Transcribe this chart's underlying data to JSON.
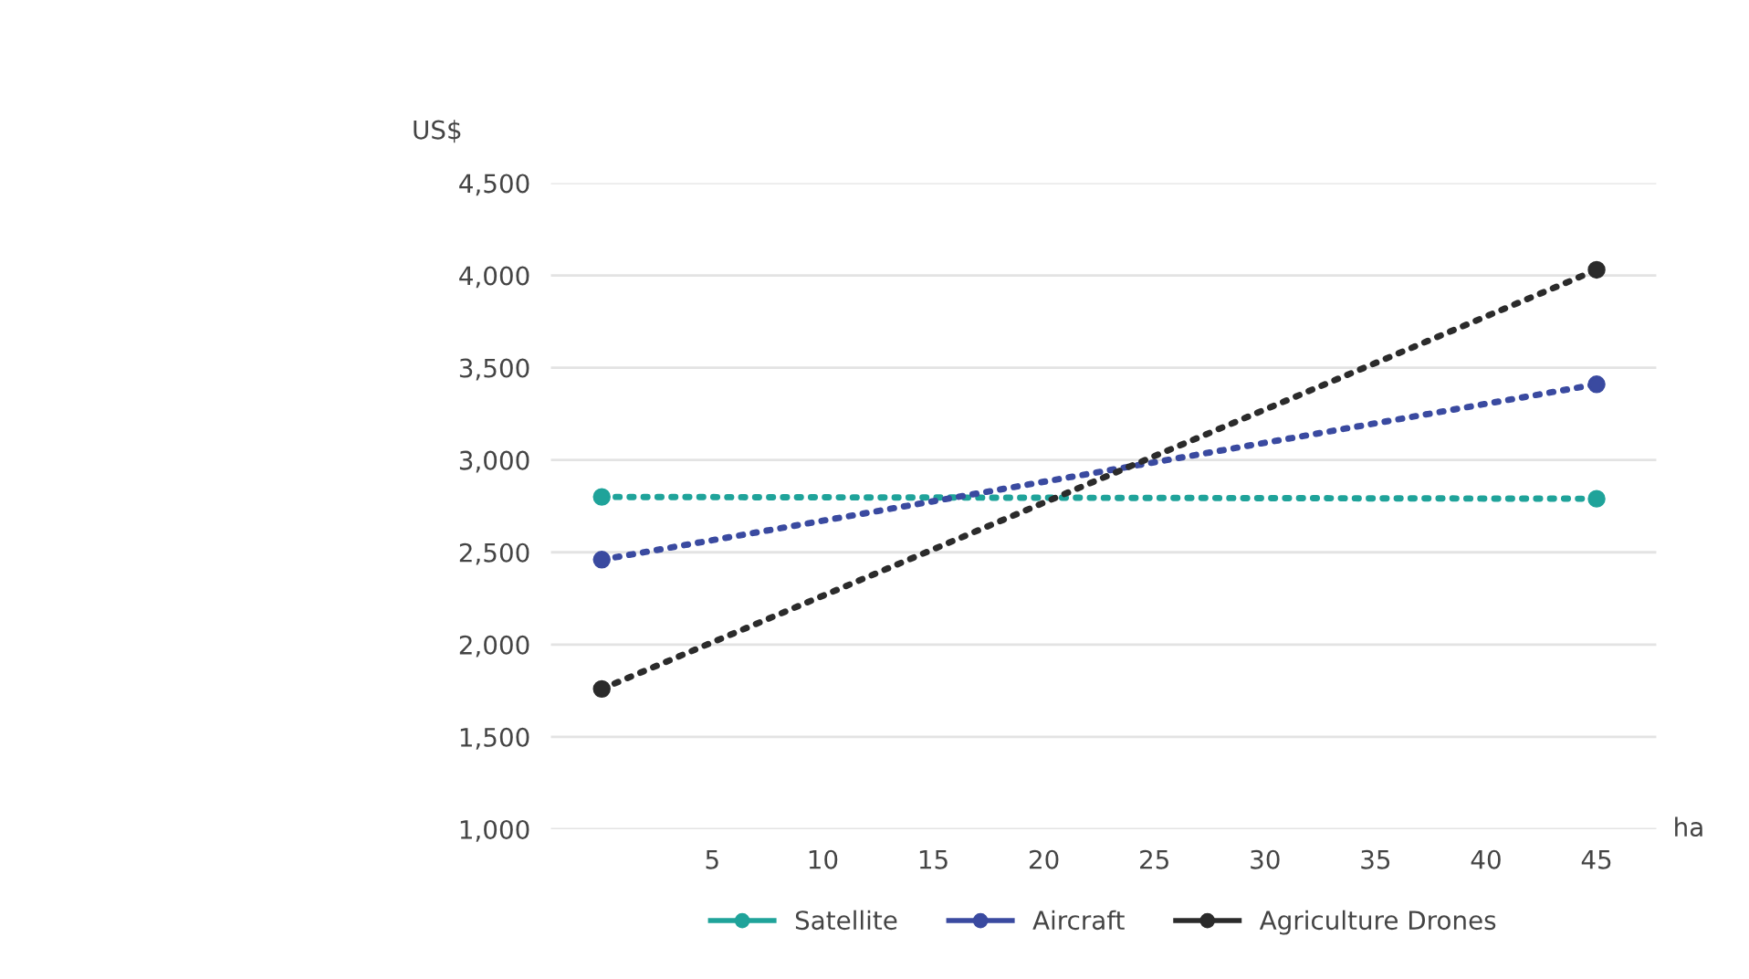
{
  "chart_data": {
    "type": "line",
    "xlabel": "ha",
    "ylabel": "US$",
    "x": [
      0,
      45
    ],
    "series": [
      {
        "name": "Satellite",
        "color": "#1fa39a",
        "values": [
          2800,
          2790
        ]
      },
      {
        "name": "Aircraft",
        "color": "#3a4aa0",
        "values": [
          2460,
          3410
        ]
      },
      {
        "name": "Agriculture Drones",
        "color": "#2b2b2b",
        "values": [
          1760,
          4030
        ]
      }
    ],
    "xlim": [
      -2.3,
      47.7
    ],
    "xticks": [
      5,
      10,
      15,
      20,
      25,
      30,
      35,
      40,
      45
    ],
    "ylim": [
      1000,
      4500
    ],
    "yticks": [
      {
        "value": 1000,
        "label": "1,000"
      },
      {
        "value": 1500,
        "label": "1,500"
      },
      {
        "value": 2000,
        "label": "2,000"
      },
      {
        "value": 2500,
        "label": "2,500"
      },
      {
        "value": 3000,
        "label": "3,000"
      },
      {
        "value": 3500,
        "label": "3,500"
      },
      {
        "value": 4000,
        "label": "4,000"
      },
      {
        "value": 4500,
        "label": "4,500"
      }
    ],
    "grid": "y",
    "legend": "bottom",
    "marker": "circle",
    "line_style": "dotted"
  }
}
